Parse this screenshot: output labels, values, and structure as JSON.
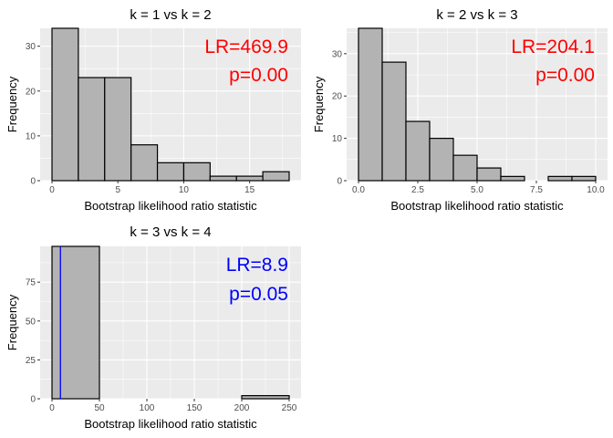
{
  "chart_data": [
    {
      "type": "bar",
      "title": "k = 1 vs k = 2",
      "xlabel": "Bootstrap likelihood ratio statistic",
      "ylabel": "Frequency",
      "bin_width": 2,
      "bins": [
        {
          "x0": 0,
          "x1": 2,
          "count": 34
        },
        {
          "x0": 2,
          "x1": 4,
          "count": 23
        },
        {
          "x0": 4,
          "x1": 6,
          "count": 23
        },
        {
          "x0": 6,
          "x1": 8,
          "count": 8
        },
        {
          "x0": 8,
          "x1": 10,
          "count": 4
        },
        {
          "x0": 10,
          "x1": 12,
          "count": 4
        },
        {
          "x0": 12,
          "x1": 14,
          "count": 1
        },
        {
          "x0": 14,
          "x1": 16,
          "count": 1
        },
        {
          "x0": 16,
          "x1": 18,
          "count": 2
        }
      ],
      "xlim": [
        -0.9,
        18.9
      ],
      "ylim": [
        0,
        34
      ],
      "xticks": [
        0,
        5,
        10,
        15
      ],
      "yticks": [
        0,
        10,
        20,
        30
      ],
      "annotations": [
        {
          "text": "LR=469.9",
          "color": "#ff0000"
        },
        {
          "text": "p=0.00",
          "color": "#ff0000"
        }
      ],
      "vline": null
    },
    {
      "type": "bar",
      "title": "k = 2 vs k = 3",
      "xlabel": "Bootstrap likelihood ratio statistic",
      "ylabel": "Frequency",
      "bin_width": 1,
      "bins": [
        {
          "x0": 0,
          "x1": 1,
          "count": 36
        },
        {
          "x0": 1,
          "x1": 2,
          "count": 28
        },
        {
          "x0": 2,
          "x1": 3,
          "count": 14
        },
        {
          "x0": 3,
          "x1": 4,
          "count": 10
        },
        {
          "x0": 4,
          "x1": 5,
          "count": 6
        },
        {
          "x0": 5,
          "x1": 6,
          "count": 3
        },
        {
          "x0": 6,
          "x1": 7,
          "count": 1
        },
        {
          "x0": 7,
          "x1": 8,
          "count": 0
        },
        {
          "x0": 8,
          "x1": 9,
          "count": 1
        },
        {
          "x0": 9,
          "x1": 10,
          "count": 1
        }
      ],
      "xlim": [
        -0.5,
        10.5
      ],
      "ylim": [
        0,
        36
      ],
      "xticks": [
        0.0,
        2.5,
        5.0,
        7.5,
        10.0
      ],
      "xtick_labels": [
        "0.0",
        "2.5",
        "5.0",
        "7.5",
        "10.0"
      ],
      "yticks": [
        0,
        10,
        20,
        30
      ],
      "annotations": [
        {
          "text": "LR=204.1",
          "color": "#ff0000"
        },
        {
          "text": "p=0.00",
          "color": "#ff0000"
        }
      ],
      "vline": null
    },
    {
      "type": "bar",
      "title": "k = 3 vs k = 4",
      "xlabel": "Bootstrap likelihood ratio statistic",
      "ylabel": "Frequency",
      "bin_width": 50,
      "bins": [
        {
          "x0": 0,
          "x1": 50,
          "count": 98
        },
        {
          "x0": 50,
          "x1": 100,
          "count": 0
        },
        {
          "x0": 100,
          "x1": 150,
          "count": 0
        },
        {
          "x0": 150,
          "x1": 200,
          "count": 0
        },
        {
          "x0": 200,
          "x1": 250,
          "count": 2
        }
      ],
      "xlim": [
        -12.5,
        262.5
      ],
      "ylim": [
        0,
        98
      ],
      "xticks": [
        0,
        50,
        100,
        150,
        200,
        250
      ],
      "yticks": [
        0,
        25,
        50,
        75
      ],
      "annotations": [
        {
          "text": "LR=8.9",
          "color": "#0000ff"
        },
        {
          "text": "p=0.05",
          "color": "#0000ff"
        }
      ],
      "vline": {
        "x": 8.9,
        "color": "#0000ff"
      }
    }
  ]
}
